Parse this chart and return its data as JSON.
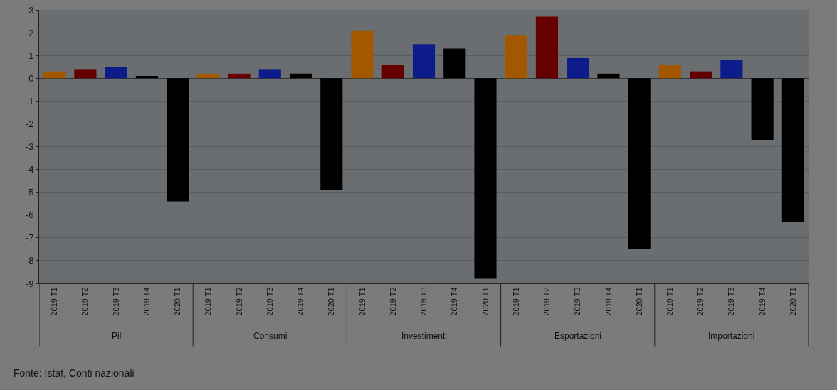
{
  "chart_data": {
    "type": "bar",
    "categories": [
      "2019 T1",
      "2019 T2",
      "2019 T3",
      "2019 T4",
      "2020 T1",
      "2019 T1",
      "2019 T2",
      "2019 T3",
      "2019 T4",
      "2020 T1",
      "2019 T1",
      "2019 T2",
      "2019 T3",
      "2019 T4",
      "2020 T1",
      "2019 T1",
      "2019 T2",
      "2019 T3",
      "2019 T4",
      "2020 T1",
      "2019 T1",
      "2019 T2",
      "2019 T3",
      "2019 T4",
      "2020 T1"
    ],
    "values": [
      0.3,
      0.4,
      0.5,
      0.1,
      -5.4,
      0.2,
      0.2,
      0.4,
      0.2,
      -4.9,
      2.1,
      0.6,
      1.5,
      1.3,
      -8.8,
      1.9,
      2.7,
      0.9,
      0.2,
      -7.5,
      0.6,
      0.3,
      0.8,
      -2.7,
      -6.3
    ],
    "colors": [
      "#a35800",
      "#650000",
      "#0c1c8a",
      "#000000",
      "#000000",
      "#a35800",
      "#650000",
      "#0c1c8a",
      "#000000",
      "#000000",
      "#a35800",
      "#650000",
      "#0c1c8a",
      "#000000",
      "#000000",
      "#a35800",
      "#650000",
      "#0c1c8a",
      "#000000",
      "#000000",
      "#a35800",
      "#650000",
      "#0c1c8a",
      "#000000",
      "#000000"
    ],
    "ylim": [
      -9,
      3
    ],
    "yticks": [
      -9,
      -8,
      -7,
      -6,
      -5,
      -4,
      -3,
      -2,
      -1,
      0,
      1,
      2,
      3
    ],
    "grid": "y",
    "legend": false,
    "annotations": [
      "Pil",
      "Consumi",
      "Investimenti",
      "Esportazioni",
      "Importazioni",
      "Fonte: Istat, Conti nazionali"
    ]
  }
}
